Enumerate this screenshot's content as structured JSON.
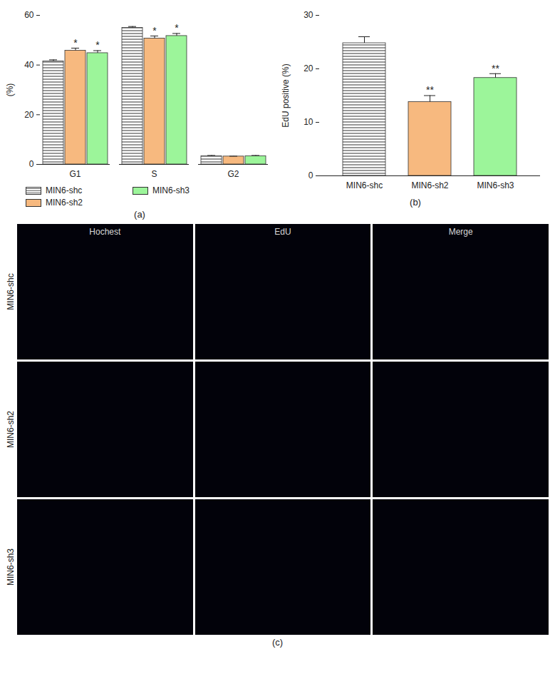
{
  "chart_data": [
    {
      "type": "bar",
      "title": "(a)",
      "categories": [
        "G1",
        "S",
        "G2"
      ],
      "y_label": "(%)",
      "ylim": [
        0,
        60
      ],
      "yticks": [
        0,
        20,
        40,
        60
      ],
      "legend": "bottom",
      "series": [
        {
          "name": "MIN6-shc",
          "color": "#ffffff",
          "values": [
            41.5,
            55.0,
            3.3
          ],
          "errors": [
            0.6,
            0.5,
            0.3
          ],
          "significance": [
            null,
            null,
            null
          ]
        },
        {
          "name": "MIN6-sh2",
          "color": "#f7b97f",
          "values": [
            45.8,
            50.7,
            3.2
          ],
          "errors": [
            1.0,
            1.0,
            0.1
          ],
          "significance": [
            "*",
            "*",
            null
          ]
        },
        {
          "name": "MIN6-sh3",
          "color": "#9cf59a",
          "values": [
            44.8,
            51.7,
            3.3
          ],
          "errors": [
            1.0,
            1.0,
            0.3
          ],
          "significance": [
            "*",
            "*",
            null
          ]
        }
      ]
    },
    {
      "type": "bar",
      "title": "(b)",
      "categories": [
        "MIN6-shc",
        "MIN6-sh2",
        "MIN6-sh3"
      ],
      "y_label": "EdU positive (%)",
      "ylim": [
        0,
        30
      ],
      "yticks": [
        0,
        10,
        20,
        30
      ],
      "values": [
        24.8,
        13.8,
        18.3
      ],
      "errors": [
        1.2,
        1.2,
        0.8
      ],
      "significance": [
        null,
        "**",
        "**"
      ],
      "colors": [
        "#ffffff",
        "#f7b97f",
        "#9cf59a"
      ]
    }
  ],
  "image_panel": {
    "caption": "(c)",
    "columns": [
      "Hochest",
      "EdU",
      "Merge"
    ],
    "rows": [
      "MIN6-shc",
      "MIN6-sh2",
      "MIN6-sh3"
    ]
  }
}
